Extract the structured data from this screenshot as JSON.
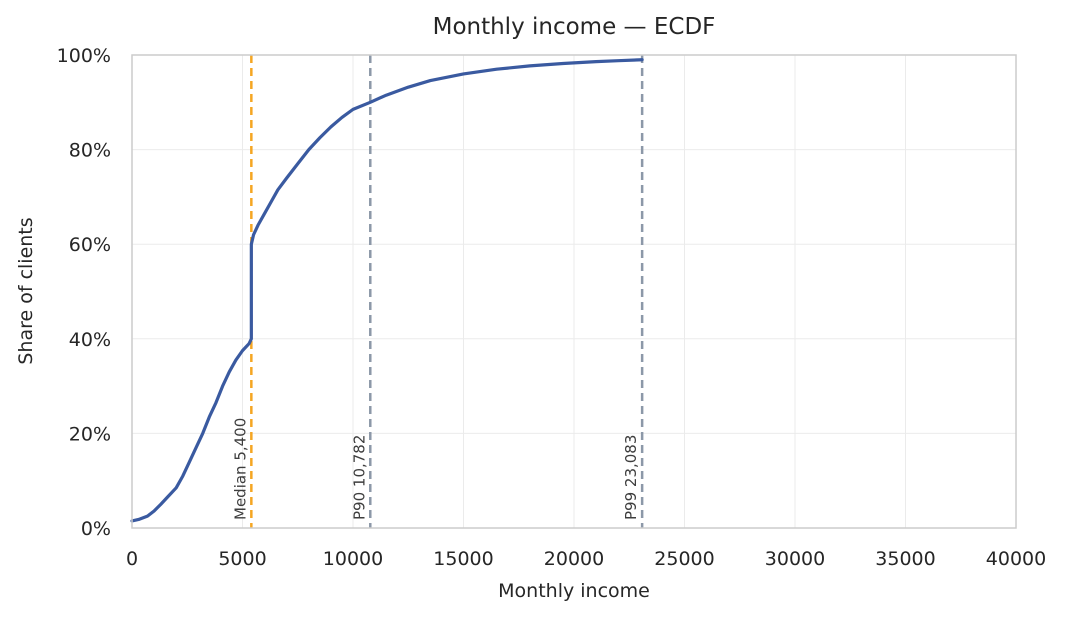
{
  "chart_data": {
    "type": "line",
    "title": "Monthly income — ECDF",
    "xlabel": "Monthly income",
    "ylabel": "Share of clients",
    "xlim": [
      0,
      40000
    ],
    "ylim": [
      0,
      1
    ],
    "x_ticks": [
      0,
      5000,
      10000,
      15000,
      20000,
      25000,
      30000,
      35000,
      40000
    ],
    "y_ticks": [
      0,
      0.2,
      0.4,
      0.6,
      0.8,
      1.0
    ],
    "y_tick_labels": [
      "0%",
      "20%",
      "40%",
      "60%",
      "80%",
      "100%"
    ],
    "grid": true,
    "series": [
      {
        "color": "#3a5aa0",
        "x": [
          0,
          300,
          700,
          1000,
          1300,
          1600,
          2000,
          2300,
          2600,
          2900,
          3200,
          3500,
          3800,
          4100,
          4400,
          4700,
          5000,
          5300,
          5400,
          5400,
          5500,
          5700,
          6000,
          6300,
          6600,
          7000,
          7500,
          8000,
          8500,
          9000,
          9500,
          10000,
          10782,
          11500,
          12500,
          13500,
          15000,
          16500,
          18000,
          19500,
          21000,
          22000,
          23083
        ],
        "y": [
          0.015,
          0.018,
          0.025,
          0.036,
          0.05,
          0.065,
          0.085,
          0.11,
          0.14,
          0.17,
          0.2,
          0.235,
          0.265,
          0.3,
          0.33,
          0.355,
          0.375,
          0.39,
          0.4,
          0.6,
          0.62,
          0.64,
          0.665,
          0.69,
          0.715,
          0.74,
          0.77,
          0.8,
          0.825,
          0.848,
          0.868,
          0.885,
          0.9,
          0.915,
          0.932,
          0.946,
          0.96,
          0.97,
          0.977,
          0.982,
          0.986,
          0.988,
          0.99
        ]
      }
    ],
    "reference_lines": [
      {
        "x": 5400,
        "label": "Median 5,400",
        "color": "#f5a623"
      },
      {
        "x": 10782,
        "label": "P90 10,782",
        "color": "#8c98a8"
      },
      {
        "x": 23083,
        "label": "P99 23,083",
        "color": "#8c98a8"
      }
    ]
  }
}
